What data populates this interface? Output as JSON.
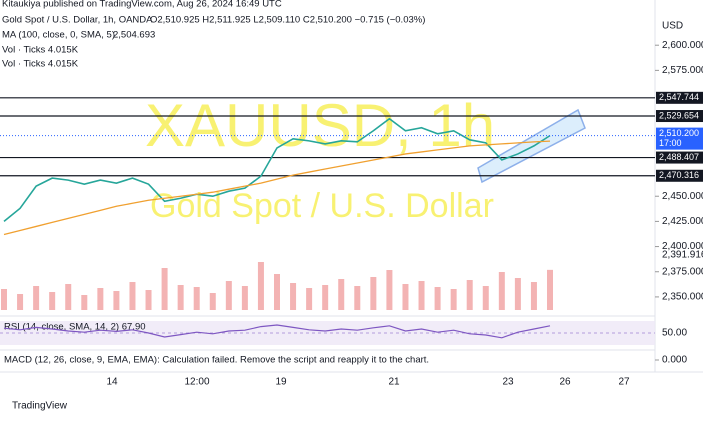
{
  "chart_data": {
    "type": "line",
    "published": "Kitaukiya published on TradingView.com, Aug 26, 2024 16:49 UTC",
    "title": "Gold Spot / U.S. Dollar, 1h, OANDA",
    "ohlc": "O2,510.925 H2,511.925 L2,509.110 C2,510.200 −0.715 (−0.03%)",
    "ma_label": "2,504.693",
    "vol_legend": [
      "Vol · Ticks 4.015K",
      "Vol · Ticks 4.015K"
    ],
    "watermark": "XAUUSD, 1h",
    "watermark_subtitle": "Gold Spot / U.S. Dollar",
    "currency": "USD",
    "brand": "TradingView",
    "macd_note": "MACD (12, 26, close, 9, EMA, EMA): Calculation failed. Remove the script and reapply it to the chart.",
    "time_labels": [
      "14",
      "12:00",
      "19",
      "21",
      "23",
      "26",
      "27"
    ],
    "ylim": [
      2337,
      2630
    ],
    "yticks": [
      {
        "value": 2600,
        "label": "2,600.000"
      },
      {
        "value": 2575,
        "label": "2,575.000"
      },
      {
        "value": 2450,
        "label": "2,450.000"
      },
      {
        "value": 2425,
        "label": "2,425.000"
      },
      {
        "value": 2400,
        "label": "2,400.000"
      },
      {
        "value": 2375,
        "label": "2,375.000"
      },
      {
        "value": 2350,
        "label": "2,350.000"
      }
    ],
    "levels": [
      {
        "value": 2547.744,
        "label": "2,547.744"
      },
      {
        "value": 2529.654,
        "label": "2,529.654"
      },
      {
        "value": 2488.407,
        "label": "2,488.407"
      },
      {
        "value": 2470.316,
        "label": "2,470.316"
      }
    ],
    "last_price": {
      "value": 2510.2,
      "label": "2,510.200",
      "time": "17:00"
    },
    "extra_label": {
      "value": 2391.916,
      "label": "2,391.916"
    },
    "series": [
      {
        "name": "Gold Spot / U.S. Dollar",
        "color": "#26a69a",
        "values": [
          2425,
          2438,
          2460,
          2468,
          2466,
          2462,
          2466,
          2463,
          2468,
          2462,
          2445,
          2448,
          2452,
          2450,
          2455,
          2458,
          2470,
          2498,
          2507,
          2505,
          2502,
          2505,
          2504,
          2515,
          2527,
          2515,
          2518,
          2512,
          2515,
          2506,
          2503,
          2486,
          2492,
          2500,
          2510.2
        ]
      },
      {
        "name": "MA (100, close, 0, SMA, 5)",
        "color": "#f0a030",
        "values": [
          2412,
          2416,
          2420,
          2424,
          2428,
          2432,
          2436,
          2440,
          2443,
          2446,
          2448,
          2450,
          2452,
          2454,
          2457,
          2460,
          2463,
          2467,
          2471,
          2474,
          2477,
          2480,
          2483,
          2486,
          2489,
          2492,
          2494,
          2496,
          2498,
          2500,
          2501,
          2502,
          2503,
          2504,
          2504.693
        ]
      }
    ],
    "volume": {
      "color": "#ef9a9a",
      "ylim": [
        0,
        9
      ],
      "values": [
        2.1,
        1.6,
        2.4,
        1.8,
        2.6,
        1.5,
        2.2,
        1.9,
        2.8,
        2.0,
        4.2,
        2.5,
        2.3,
        1.7,
        2.9,
        2.4,
        4.8,
        3.6,
        2.7,
        2.2,
        2.5,
        3.1,
        2.4,
        3.3,
        4.0,
        2.6,
        2.9,
        2.3,
        2.1,
        3.0,
        2.4,
        3.8,
        3.2,
        2.8,
        4.015
      ]
    },
    "rsi": {
      "name": "RSI (14, close, SMA, 14, 2) 67.90",
      "color": "#7e57c2",
      "ylim": [
        20,
        80
      ],
      "yticks": [
        {
          "value": 50,
          "label": "50.00"
        }
      ],
      "values": [
        62,
        58,
        64,
        60,
        55,
        52,
        57,
        54,
        58,
        50,
        40,
        46,
        52,
        48,
        55,
        57,
        66,
        70,
        64,
        58,
        55,
        60,
        57,
        63,
        68,
        55,
        60,
        52,
        57,
        48,
        45,
        38,
        52,
        60,
        67.9
      ]
    },
    "macd_ticks": [
      {
        "value": 0,
        "label": "0.000"
      }
    ]
  }
}
